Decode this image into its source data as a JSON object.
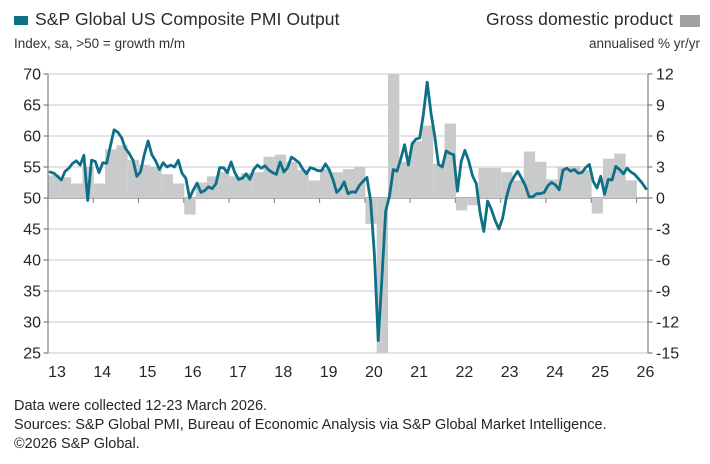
{
  "header": {
    "title_left": "S&P Global US Composite PMI Output",
    "subtitle_left": "Index, sa, >50 = growth m/m",
    "title_right": "Gross domestic product",
    "subtitle_right": "annualised % yr/yr",
    "pmi_color": "#0e7086",
    "gdp_legend_color": "#9ea1a2"
  },
  "chart_data": {
    "type": "line+bar",
    "title": "S&P Global US Composite PMI Output vs Gross domestic product",
    "left_axis": {
      "label": "Index, sa, >50 = growth m/m",
      "min": 25,
      "max": 70,
      "ticks": [
        25,
        30,
        35,
        40,
        45,
        50,
        55,
        60,
        65,
        70
      ]
    },
    "right_axis": {
      "label": "annualised % yr/yr",
      "min": -15,
      "max": 12,
      "ticks": [
        -15,
        -12,
        -9,
        -6,
        -3,
        0,
        3,
        6,
        9,
        12
      ]
    },
    "x_axis": {
      "labels": [
        "13",
        "14",
        "15",
        "16",
        "17",
        "18",
        "19",
        "20",
        "21",
        "22",
        "23",
        "24",
        "25",
        "26"
      ],
      "start": "2013-01",
      "end": "2026-03"
    },
    "grid": true,
    "legend_position": "top",
    "line_series": {
      "name": "S&P Global US Composite PMI Output",
      "axis": "left",
      "freq": "monthly",
      "start": "2013-01",
      "color": "#0e7086",
      "values": [
        54.2,
        54.0,
        53.5,
        52.9,
        54.3,
        54.8,
        55.6,
        56.0,
        55.3,
        56.9,
        49.6,
        56.1,
        55.9,
        54.1,
        55.7,
        55.6,
        58.4,
        61.0,
        60.6,
        59.7,
        58.0,
        57.2,
        56.1,
        53.5,
        54.2,
        57.0,
        59.2,
        57.0,
        56.0,
        54.6,
        55.7,
        55.0,
        55.3,
        55.0,
        56.1,
        54.0,
        53.2,
        50.0,
        51.3,
        52.4,
        50.9,
        51.2,
        51.8,
        51.5,
        52.3,
        54.9,
        54.9,
        54.1,
        55.8,
        54.1,
        53.0,
        53.2,
        53.9,
        53.0,
        54.6,
        55.3,
        54.8,
        55.2,
        54.5,
        54.1,
        53.8,
        55.8,
        54.2,
        54.9,
        56.6,
        56.2,
        55.7,
        54.7,
        53.9,
        54.9,
        54.7,
        54.4,
        54.4,
        55.5,
        54.6,
        53.0,
        50.9,
        51.5,
        52.6,
        50.7,
        51.0,
        50.9,
        52.0,
        52.7,
        53.3,
        49.6,
        40.9,
        27.0,
        37.0,
        47.9,
        50.3,
        54.6,
        54.3,
        56.3,
        58.6,
        55.3,
        58.7,
        59.5,
        59.7,
        63.5,
        68.7,
        63.7,
        59.9,
        55.4,
        55.0,
        57.6,
        57.2,
        57.0,
        51.1,
        55.9,
        57.7,
        56.0,
        53.6,
        52.3,
        47.7,
        44.6,
        49.5,
        48.2,
        46.4,
        45.0,
        46.8,
        50.1,
        52.3,
        53.4,
        54.3,
        53.2,
        52.0,
        50.2,
        50.2,
        50.7,
        50.7,
        50.9,
        52.0,
        52.5,
        52.1,
        51.3,
        54.5,
        54.8,
        54.3,
        54.6,
        54.0,
        54.1,
        54.9,
        55.4,
        52.7,
        51.6,
        53.5,
        50.6,
        53.0,
        52.9,
        55.1,
        54.6,
        53.9,
        54.8,
        54.2,
        53.8,
        53.1,
        52.4,
        51.5
      ]
    },
    "bar_series": {
      "name": "Gross domestic product",
      "axis": "right",
      "freq": "quarterly",
      "start": "2013-Q1",
      "end": "2025-Q4",
      "color": "#c9cacb",
      "bars_clipped_to_axis": true,
      "clip_note": "2020 Q2 bar clipped at axis floor (-15); 2020 Q3 bar clipped at axis ceiling (+12)",
      "values": [
        2.2,
        2.0,
        1.4,
        3.0,
        1.4,
        4.7,
        5.1,
        3.7,
        3.2,
        3.0,
        2.3,
        1.4,
        -1.6,
        1.5,
        2.1,
        2.5,
        2.1,
        2.4,
        2.5,
        4.0,
        4.2,
        3.5,
        2.7,
        1.7,
        2.8,
        2.5,
        2.8,
        3.0,
        -2.5,
        -15,
        12,
        3.5,
        5.5,
        7.0,
        3.3,
        7.2,
        -1.2,
        -0.7,
        2.9,
        2.9,
        2.5,
        1.7,
        4.5,
        3.5,
        1.8,
        3.0,
        3.1,
        2.7,
        -1.5,
        3.8,
        4.3,
        1.7
      ]
    },
    "colors": {
      "gridline": "#c9c9c9",
      "zero_line": "#808080",
      "axis_line": "#808080",
      "tick_label": "#262626"
    }
  },
  "footer": {
    "line1": "Data were collected 12-23 March 2026.",
    "line2": "Sources: S&P Global PMI, Bureau of Economic Analysis via S&P Global Market Intelligence.",
    "line3": "©2026 S&P Global."
  }
}
